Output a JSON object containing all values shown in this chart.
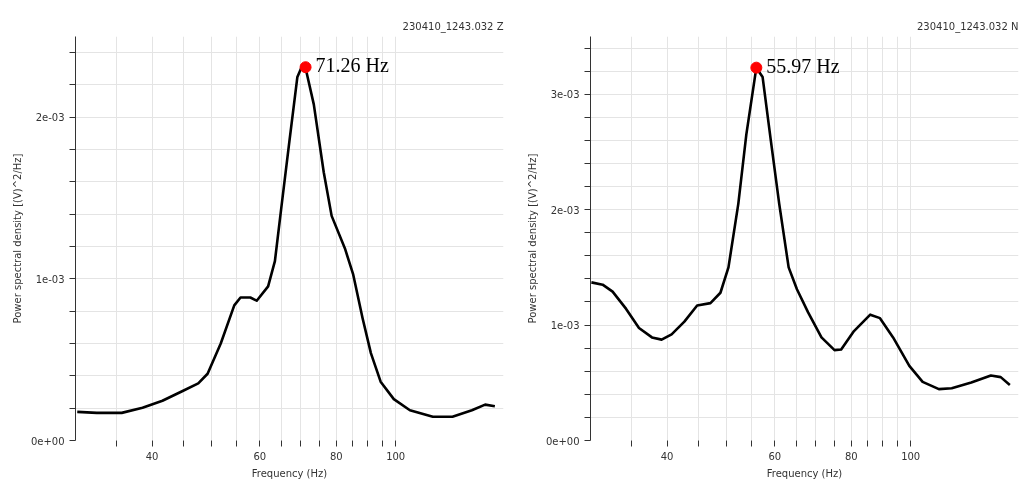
{
  "chart_data": [
    {
      "type": "line",
      "title": "230410_1243.032 Z",
      "xlabel": "Frequency (Hz)",
      "ylabel": "Power spectral density [(V)^2/Hz]",
      "log": "x",
      "grid": true,
      "xlim": [
        30,
        150
      ],
      "xticks": [
        {
          "value": 35,
          "label": null
        },
        40,
        {
          "value": 45,
          "label": null
        },
        {
          "value": 50,
          "label": null
        },
        {
          "value": 55,
          "label": null
        },
        60,
        {
          "value": 65,
          "label": null
        },
        {
          "value": 70,
          "label": null
        },
        {
          "value": 75,
          "label": null
        },
        80,
        {
          "value": 85,
          "label": null
        },
        {
          "value": 90,
          "label": null
        },
        {
          "value": 95,
          "label": null
        },
        100
      ],
      "ylim": [
        0,
        0.0025
      ],
      "yticks": [
        {
          "value": 0,
          "label": "0e+00"
        },
        {
          "value": 0.0002,
          "label": null
        },
        {
          "value": 0.0004,
          "label": null
        },
        {
          "value": 0.0006,
          "label": null
        },
        {
          "value": 0.0008,
          "label": null
        },
        {
          "value": 0.001,
          "label": "1e-03"
        },
        {
          "value": 0.0012,
          "label": null
        },
        {
          "value": 0.0014,
          "label": null
        },
        {
          "value": 0.0016,
          "label": null
        },
        {
          "value": 0.0018,
          "label": null
        },
        {
          "value": 0.002,
          "label": "2e-03"
        },
        {
          "value": 0.0022,
          "label": null
        },
        {
          "value": 0.0024,
          "label": null
        }
      ],
      "series": [
        {
          "color": "#000000",
          "line_style": "solid",
          "x": [
            30.2,
            32.5,
            35.7,
            38.6,
            41.6,
            44.8,
            47.6,
            49.3,
            51.8,
            54.5,
            55.8,
            57.9,
            59.3,
            61.9,
            63.5,
            65.0,
            67.1,
            69.1,
            70.2,
            71.5,
            73.5,
            76.3,
            78.6,
            82.6,
            85.2,
            88.3,
            91.1,
            94.5,
            99.3,
            105.5,
            115.0,
            123.8,
            133.2,
            140.0,
            145.2
          ],
          "values": [
            0.000177,
            0.000171,
            0.000171,
            0.000203,
            0.000246,
            0.000305,
            0.000354,
            0.000413,
            0.0006,
            0.000836,
            0.000885,
            0.000885,
            0.000865,
            0.000954,
            0.00111,
            0.00143,
            0.00186,
            0.00225,
            0.00231,
            0.00228,
            0.00208,
            0.00166,
            0.00139,
            0.00119,
            0.00103,
            0.000757,
            0.000541,
            0.000364,
            0.000256,
            0.000187,
            0.000147,
            0.000147,
            0.000187,
            0.000222,
            0.000212
          ]
        },
        {
          "type": "scatter",
          "color": "#ff0000",
          "marker": "circle",
          "x": [
            71.26
          ],
          "values": [
            0.00231
          ]
        }
      ],
      "annotations": [
        {
          "text": "71.26 Hz",
          "x": 71.26,
          "y": 0.00231
        }
      ]
    },
    {
      "type": "line",
      "title": "230410_1243.032 N",
      "xlabel": "Frequency (Hz)",
      "ylabel": "Power spectral density [(V)^2/Hz]",
      "log": "x",
      "grid": true,
      "xlim": [
        30,
        150
      ],
      "xticks": [
        {
          "value": 35,
          "label": null
        },
        40,
        {
          "value": 45,
          "label": null
        },
        {
          "value": 50,
          "label": null
        },
        {
          "value": 55,
          "label": null
        },
        60,
        {
          "value": 65,
          "label": null
        },
        {
          "value": 70,
          "label": null
        },
        {
          "value": 75,
          "label": null
        },
        80,
        {
          "value": 85,
          "label": null
        },
        {
          "value": 90,
          "label": null
        },
        {
          "value": 95,
          "label": null
        },
        100
      ],
      "ylim": [
        0,
        0.0035
      ],
      "yticks": [
        {
          "value": 0,
          "label": "0e+00"
        },
        {
          "value": 0.0002,
          "label": null
        },
        {
          "value": 0.0004,
          "label": null
        },
        {
          "value": 0.0006,
          "label": null
        },
        {
          "value": 0.0008,
          "label": null
        },
        {
          "value": 0.001,
          "label": "1e-03"
        },
        {
          "value": 0.0012,
          "label": null
        },
        {
          "value": 0.0014,
          "label": null
        },
        {
          "value": 0.0016,
          "label": null
        },
        {
          "value": 0.0018,
          "label": null
        },
        {
          "value": 0.002,
          "label": "2e-03"
        },
        {
          "value": 0.0022,
          "label": null
        },
        {
          "value": 0.0024,
          "label": null
        },
        {
          "value": 0.0026,
          "label": null
        },
        {
          "value": 0.0028,
          "label": null
        },
        {
          "value": 0.003,
          "label": "3e-03"
        },
        {
          "value": 0.0032,
          "label": null
        },
        {
          "value": 0.0034,
          "label": null
        }
      ],
      "series": [
        {
          "color": "#000000",
          "line_style": "solid",
          "x": [
            30.1,
            31.4,
            32.6,
            34.3,
            36.0,
            37.8,
            39.2,
            40.7,
            42.7,
            44.8,
            47.1,
            48.9,
            50.4,
            52.3,
            53.9,
            55.97,
            57.3,
            59.1,
            61.0,
            63.2,
            65.2,
            68.0,
            71.5,
            75.1,
            77.0,
            80.8,
            85.9,
            89.1,
            93.6,
            99.5,
            104.6,
            111.2,
            116.7,
            125.6,
            135.2,
            140.3,
            145.2
          ],
          "values": [
            0.00137,
            0.00135,
            0.00129,
            0.00114,
            0.000975,
            0.000893,
            0.000874,
            0.00092,
            0.00103,
            0.00117,
            0.00119,
            0.00128,
            0.0015,
            0.00205,
            0.00265,
            0.00323,
            0.00315,
            0.0026,
            0.00205,
            0.0015,
            0.00131,
            0.00111,
            0.000893,
            0.000783,
            0.000788,
            0.000948,
            0.00109,
            0.00106,
            0.000893,
            0.000646,
            0.000508,
            0.000445,
            0.000453,
            0.000503,
            0.000563,
            0.000549,
            0.000481
          ]
        },
        {
          "type": "scatter",
          "color": "#ff0000",
          "marker": "circle",
          "x": [
            55.97
          ],
          "values": [
            0.00323
          ]
        }
      ],
      "annotations": [
        {
          "text": "55.97 Hz",
          "x": 55.97,
          "y": 0.00323
        }
      ]
    }
  ]
}
